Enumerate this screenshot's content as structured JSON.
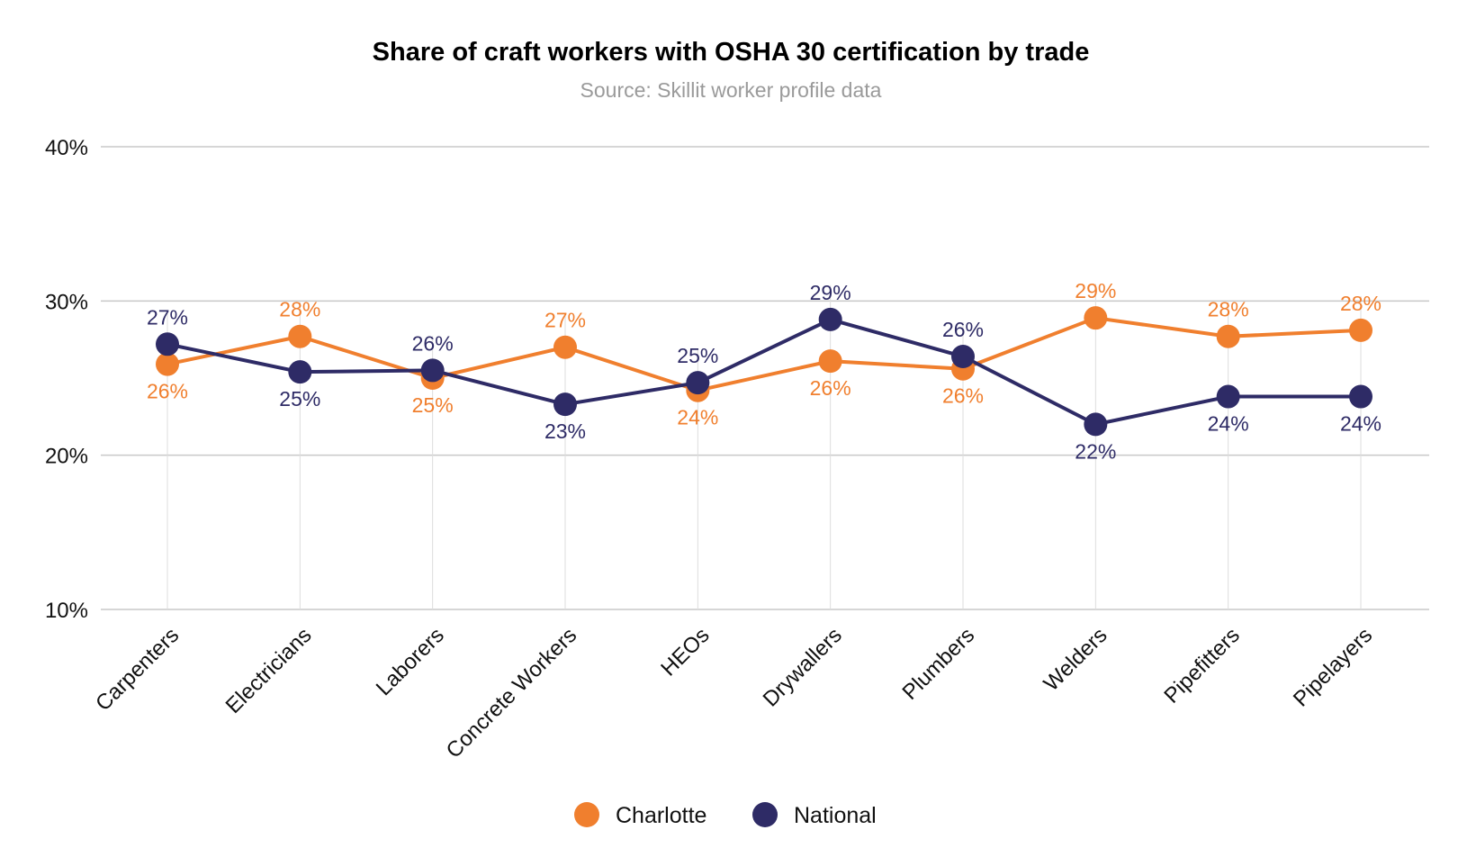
{
  "chart_data": {
    "type": "line",
    "title": "Share of craft workers with OSHA 30 certification by trade",
    "subtitle": "Source: Skillit worker profile data",
    "xlabel": "",
    "ylabel": "",
    "categories": [
      "Carpenters",
      "Electricians",
      "Laborers",
      "Concrete Workers",
      "HEOs",
      "Drywallers",
      "Plumbers",
      "Welders",
      "Pipefitters",
      "Pipelayers"
    ],
    "ylim": [
      10,
      40
    ],
    "y_ticks": [
      10,
      20,
      30,
      40
    ],
    "y_tick_labels": [
      "10%",
      "20%",
      "30%",
      "40%"
    ],
    "grid": true,
    "legend_position": "bottom-center",
    "series": [
      {
        "name": "Charlotte",
        "color": "#f07f2e",
        "values": [
          25.9,
          27.7,
          25.0,
          27.0,
          24.2,
          26.1,
          25.6,
          28.9,
          27.7,
          28.1
        ],
        "labels": [
          "26%",
          "28%",
          "25%",
          "27%",
          "24%",
          "26%",
          "26%",
          "29%",
          "28%",
          "28%"
        ]
      },
      {
        "name": "National",
        "color": "#2e2b66",
        "values": [
          27.2,
          25.4,
          25.5,
          23.3,
          24.7,
          28.8,
          26.4,
          22.0,
          23.8,
          23.8
        ],
        "labels": [
          "27%",
          "25%",
          "26%",
          "23%",
          "25%",
          "29%",
          "26%",
          "22%",
          "24%",
          "24%"
        ]
      }
    ]
  }
}
